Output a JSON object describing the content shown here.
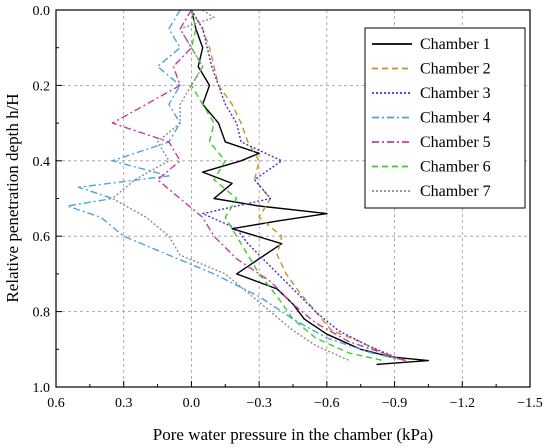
{
  "chart_data": {
    "type": "line",
    "title": "",
    "xlabel": "Pore water pressure in the chamber (kPa)",
    "ylabel": "Relative penetration depth h/H",
    "xlim": [
      0.6,
      -1.5
    ],
    "ylim": [
      1.0,
      0.0
    ],
    "x_ticks": [
      0.6,
      0.3,
      0.0,
      -0.3,
      -0.6,
      -0.9,
      -1.2,
      -1.5
    ],
    "x_tick_labels": [
      "0.6",
      "0.3",
      "0.0",
      "−0.3",
      "−0.6",
      "−0.9",
      "−1.2",
      "−1.5"
    ],
    "y_ticks": [
      0.0,
      0.2,
      0.4,
      0.6,
      0.8,
      1.0
    ],
    "y_tick_labels": [
      "0.0",
      "0.2",
      "0.4",
      "0.6",
      "0.8",
      "1.0"
    ],
    "grid": true,
    "legend_position": "top-right",
    "series": [
      {
        "name": "Chamber 1",
        "color": "#000000",
        "dash": "solid",
        "points": [
          [
            0.0,
            0.0
          ],
          [
            -0.02,
            0.05
          ],
          [
            -0.05,
            0.1
          ],
          [
            -0.03,
            0.15
          ],
          [
            -0.08,
            0.2
          ],
          [
            -0.05,
            0.25
          ],
          [
            -0.12,
            0.3
          ],
          [
            -0.15,
            0.35
          ],
          [
            -0.3,
            0.38
          ],
          [
            -0.22,
            0.4
          ],
          [
            -0.05,
            0.43
          ],
          [
            -0.18,
            0.46
          ],
          [
            -0.1,
            0.5
          ],
          [
            -0.3,
            0.52
          ],
          [
            -0.6,
            0.54
          ],
          [
            -0.38,
            0.56
          ],
          [
            -0.18,
            0.58
          ],
          [
            -0.4,
            0.62
          ],
          [
            -0.3,
            0.66
          ],
          [
            -0.2,
            0.7
          ],
          [
            -0.38,
            0.74
          ],
          [
            -0.45,
            0.78
          ],
          [
            -0.5,
            0.82
          ],
          [
            -0.6,
            0.86
          ],
          [
            -0.75,
            0.9
          ],
          [
            -0.88,
            0.92
          ],
          [
            -1.05,
            0.93
          ],
          [
            -0.82,
            0.94
          ]
        ]
      },
      {
        "name": "Chamber 2",
        "color": "#c8922a",
        "dash": "dash",
        "points": [
          [
            0.0,
            0.0
          ],
          [
            -0.05,
            0.05
          ],
          [
            -0.08,
            0.1
          ],
          [
            -0.1,
            0.15
          ],
          [
            -0.12,
            0.2
          ],
          [
            -0.18,
            0.25
          ],
          [
            -0.22,
            0.3
          ],
          [
            -0.25,
            0.35
          ],
          [
            -0.3,
            0.4
          ],
          [
            -0.28,
            0.45
          ],
          [
            -0.35,
            0.5
          ],
          [
            -0.3,
            0.55
          ],
          [
            -0.4,
            0.6
          ],
          [
            -0.38,
            0.65
          ],
          [
            -0.42,
            0.7
          ],
          [
            -0.48,
            0.75
          ],
          [
            -0.55,
            0.8
          ],
          [
            -0.62,
            0.85
          ],
          [
            -0.75,
            0.88
          ],
          [
            -0.85,
            0.91
          ],
          [
            -0.92,
            0.93
          ]
        ]
      },
      {
        "name": "Chamber 3",
        "color": "#4b2bd1",
        "dash": "dot",
        "points": [
          [
            0.0,
            0.0
          ],
          [
            -0.05,
            0.05
          ],
          [
            -0.07,
            0.1
          ],
          [
            -0.09,
            0.15
          ],
          [
            -0.12,
            0.2
          ],
          [
            -0.15,
            0.25
          ],
          [
            -0.2,
            0.3
          ],
          [
            -0.22,
            0.35
          ],
          [
            -0.4,
            0.4
          ],
          [
            -0.28,
            0.45
          ],
          [
            -0.35,
            0.5
          ],
          [
            -0.05,
            0.54
          ],
          [
            -0.2,
            0.58
          ],
          [
            -0.25,
            0.62
          ],
          [
            -0.35,
            0.68
          ],
          [
            -0.45,
            0.74
          ],
          [
            -0.55,
            0.8
          ],
          [
            -0.65,
            0.85
          ],
          [
            -0.78,
            0.89
          ],
          [
            -0.9,
            0.92
          ]
        ]
      },
      {
        "name": "Chamber 4",
        "color": "#4aa3e0",
        "dash": "dashdot",
        "points": [
          [
            0.05,
            0.0
          ],
          [
            0.1,
            0.05
          ],
          [
            0.05,
            0.1
          ],
          [
            0.15,
            0.15
          ],
          [
            0.05,
            0.2
          ],
          [
            0.1,
            0.25
          ],
          [
            0.05,
            0.3
          ],
          [
            0.1,
            0.35
          ],
          [
            0.35,
            0.4
          ],
          [
            0.1,
            0.44
          ],
          [
            0.5,
            0.47
          ],
          [
            0.35,
            0.5
          ],
          [
            0.55,
            0.52
          ],
          [
            0.4,
            0.55
          ],
          [
            0.3,
            0.6
          ],
          [
            0.1,
            0.65
          ],
          [
            -0.1,
            0.7
          ],
          [
            -0.3,
            0.76
          ],
          [
            -0.45,
            0.82
          ],
          [
            -0.6,
            0.87
          ],
          [
            -0.8,
            0.91
          ],
          [
            -0.95,
            0.93
          ]
        ]
      },
      {
        "name": "Chamber 5",
        "color": "#c43ba6",
        "dash": "dashdot",
        "points": [
          [
            0.0,
            0.0
          ],
          [
            0.05,
            0.05
          ],
          [
            0.0,
            0.1
          ],
          [
            0.08,
            0.15
          ],
          [
            0.05,
            0.2
          ],
          [
            0.2,
            0.25
          ],
          [
            0.35,
            0.3
          ],
          [
            0.1,
            0.35
          ],
          [
            0.05,
            0.4
          ],
          [
            0.15,
            0.45
          ],
          [
            0.05,
            0.5
          ],
          [
            -0.05,
            0.55
          ],
          [
            -0.1,
            0.6
          ],
          [
            -0.2,
            0.66
          ],
          [
            -0.35,
            0.72
          ],
          [
            -0.45,
            0.78
          ],
          [
            -0.55,
            0.83
          ],
          [
            -0.7,
            0.88
          ],
          [
            -0.85,
            0.91
          ],
          [
            -0.95,
            0.93
          ]
        ]
      },
      {
        "name": "Chamber 6",
        "color": "#3ecc2a",
        "dash": "dash",
        "points": [
          [
            0.0,
            0.0
          ],
          [
            -0.02,
            0.05
          ],
          [
            0.0,
            0.1
          ],
          [
            -0.05,
            0.15
          ],
          [
            0.0,
            0.2
          ],
          [
            -0.05,
            0.25
          ],
          [
            -0.1,
            0.3
          ],
          [
            -0.08,
            0.35
          ],
          [
            -0.15,
            0.4
          ],
          [
            -0.1,
            0.45
          ],
          [
            -0.2,
            0.5
          ],
          [
            -0.15,
            0.55
          ],
          [
            -0.2,
            0.6
          ],
          [
            -0.25,
            0.65
          ],
          [
            -0.3,
            0.7
          ],
          [
            -0.38,
            0.76
          ],
          [
            -0.45,
            0.82
          ],
          [
            -0.55,
            0.87
          ],
          [
            -0.7,
            0.91
          ],
          [
            -0.85,
            0.93
          ]
        ]
      },
      {
        "name": "Chamber 7",
        "color": "#8c8c8c",
        "dash": "dot",
        "points": [
          [
            -0.05,
            0.0
          ],
          [
            -0.1,
            0.02
          ],
          [
            0.05,
            0.05
          ],
          [
            0.0,
            0.1
          ],
          [
            -0.05,
            0.15
          ],
          [
            0.0,
            0.2
          ],
          [
            0.05,
            0.25
          ],
          [
            0.05,
            0.3
          ],
          [
            0.15,
            0.35
          ],
          [
            0.1,
            0.4
          ],
          [
            0.25,
            0.45
          ],
          [
            0.35,
            0.5
          ],
          [
            0.2,
            0.55
          ],
          [
            0.1,
            0.6
          ],
          [
            0.05,
            0.65
          ],
          [
            -0.15,
            0.7
          ],
          [
            -0.25,
            0.75
          ],
          [
            -0.35,
            0.8
          ],
          [
            -0.45,
            0.85
          ],
          [
            -0.55,
            0.89
          ],
          [
            -0.7,
            0.93
          ]
        ]
      }
    ]
  }
}
